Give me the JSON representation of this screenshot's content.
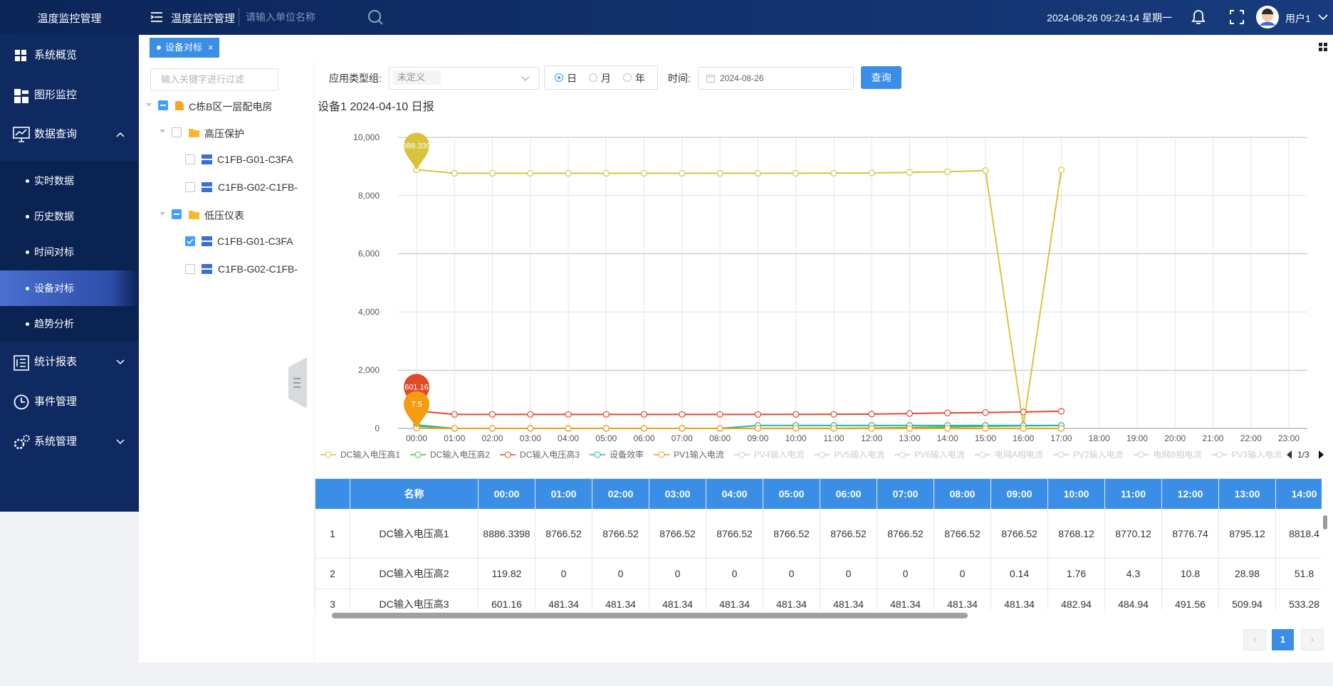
{
  "header": {
    "app_title": "温度监控管理",
    "breadcrumb": "温度监控管理",
    "search_placeholder": "请输入单位名称",
    "datetime": "2024-08-26 09:24:14 星期一",
    "user": "用户1"
  },
  "sidebar": {
    "items": [
      {
        "label": "系统概览"
      },
      {
        "label": "图形监控"
      },
      {
        "label": "数据查询",
        "children": [
          "实时数据",
          "历史数据",
          "时间对标",
          "设备对标",
          "趋势分析"
        ]
      },
      {
        "label": "统计报表"
      },
      {
        "label": "事件管理"
      },
      {
        "label": "系统管理"
      }
    ]
  },
  "tabs": [
    "设备对标"
  ],
  "tree": {
    "filter_placeholder": "输入关键字进行过滤",
    "root": "C栋B区一层配电房",
    "groups": [
      {
        "label": "高压保护",
        "items": [
          "C1FB-G01-C3FA",
          "C1FB-G02-C1FB-"
        ]
      },
      {
        "label": "低压仪表",
        "items": [
          "C1FB-G01-C3FA",
          "C1FB-G02-C1FB-"
        ]
      }
    ]
  },
  "toolbar": {
    "type_label": "应用类型组:",
    "type_value": "未定义",
    "periods": [
      "日",
      "月",
      "年"
    ],
    "time_label": "时间:",
    "date": "2024-08-26",
    "query_button": "查询"
  },
  "chart_data": {
    "type": "line",
    "title": "设备1 2024-04-10 日报",
    "categories": [
      "00:00",
      "01:00",
      "02:00",
      "03:00",
      "04:00",
      "05:00",
      "06:00",
      "07:00",
      "08:00",
      "09:00",
      "10:00",
      "11:00",
      "12:00",
      "13:00",
      "14:00",
      "15:00",
      "16:00",
      "17:00",
      "18:00",
      "19:00",
      "20:00",
      "21:00",
      "22:00",
      "23:00"
    ],
    "series": [
      {
        "name": "DC输入电压高1",
        "color": "#d8c43c",
        "markpoint": true,
        "values": [
          8886.3398,
          8766.52,
          8766.52,
          8766.52,
          8766.52,
          8766.52,
          8766.52,
          8766.52,
          8766.52,
          8766.52,
          8768.12,
          8770.12,
          8776.74,
          8795.12,
          8818.4,
          8860,
          100,
          8880,
          null,
          null,
          null,
          null,
          null,
          null
        ]
      },
      {
        "name": "DC输入电压高2",
        "color": "#4cbb4c",
        "markpoint": false,
        "values": [
          119.82,
          0,
          0,
          0,
          0,
          0,
          0,
          0,
          0,
          0.14,
          1.76,
          4.3,
          10.8,
          28.98,
          51.8,
          70,
          90,
          100,
          null,
          null,
          null,
          null,
          null,
          null
        ]
      },
      {
        "name": "DC输入电压高3",
        "color": "#e04a2a",
        "markpoint": true,
        "values": [
          601.16,
          481.34,
          481.34,
          481.34,
          481.34,
          481.34,
          481.34,
          481.34,
          481.34,
          481.34,
          482.94,
          484.94,
          491.56,
          509.94,
          533.28,
          545,
          565,
          590,
          null,
          null,
          null,
          null,
          null,
          null
        ]
      },
      {
        "name": "设备效率",
        "color": "#2bb3a8",
        "markpoint": false,
        "values": [
          80,
          0,
          0,
          0,
          0,
          0,
          0,
          0,
          0,
          100,
          100,
          100,
          100,
          100,
          100,
          100,
          100,
          100,
          null,
          null,
          null,
          null,
          null,
          null
        ]
      },
      {
        "name": "PV1输入电流",
        "color": "#f39c12",
        "markpoint": true,
        "values": [
          7.5,
          0,
          0,
          0,
          0,
          0,
          0,
          0,
          0,
          0,
          0,
          0,
          0,
          0,
          0,
          0,
          0,
          0,
          null,
          null,
          null,
          null,
          null,
          null
        ]
      }
    ],
    "hidden_series": [
      "PV4输入电流",
      "PV5输入电流",
      "PV6输入电流",
      "电网A相电流",
      "PV2输入电流",
      "电网B相电流",
      "PV3输入电流"
    ],
    "legend_page": "1/3",
    "ylim": [
      0,
      10000
    ],
    "yticks": [
      0,
      {
        "value": 2000,
        "label": "2,000"
      },
      {
        "value": 4000,
        "label": "4,000"
      },
      {
        "value": 6000,
        "label": "6,000"
      },
      {
        "value": 8000,
        "label": "8,000"
      },
      {
        "value": 10000,
        "label": "10,000"
      }
    ],
    "grid": true
  },
  "table": {
    "name_header": "名称",
    "row_numbers": [
      1,
      2,
      3
    ]
  },
  "pagination": {
    "current": 1
  }
}
